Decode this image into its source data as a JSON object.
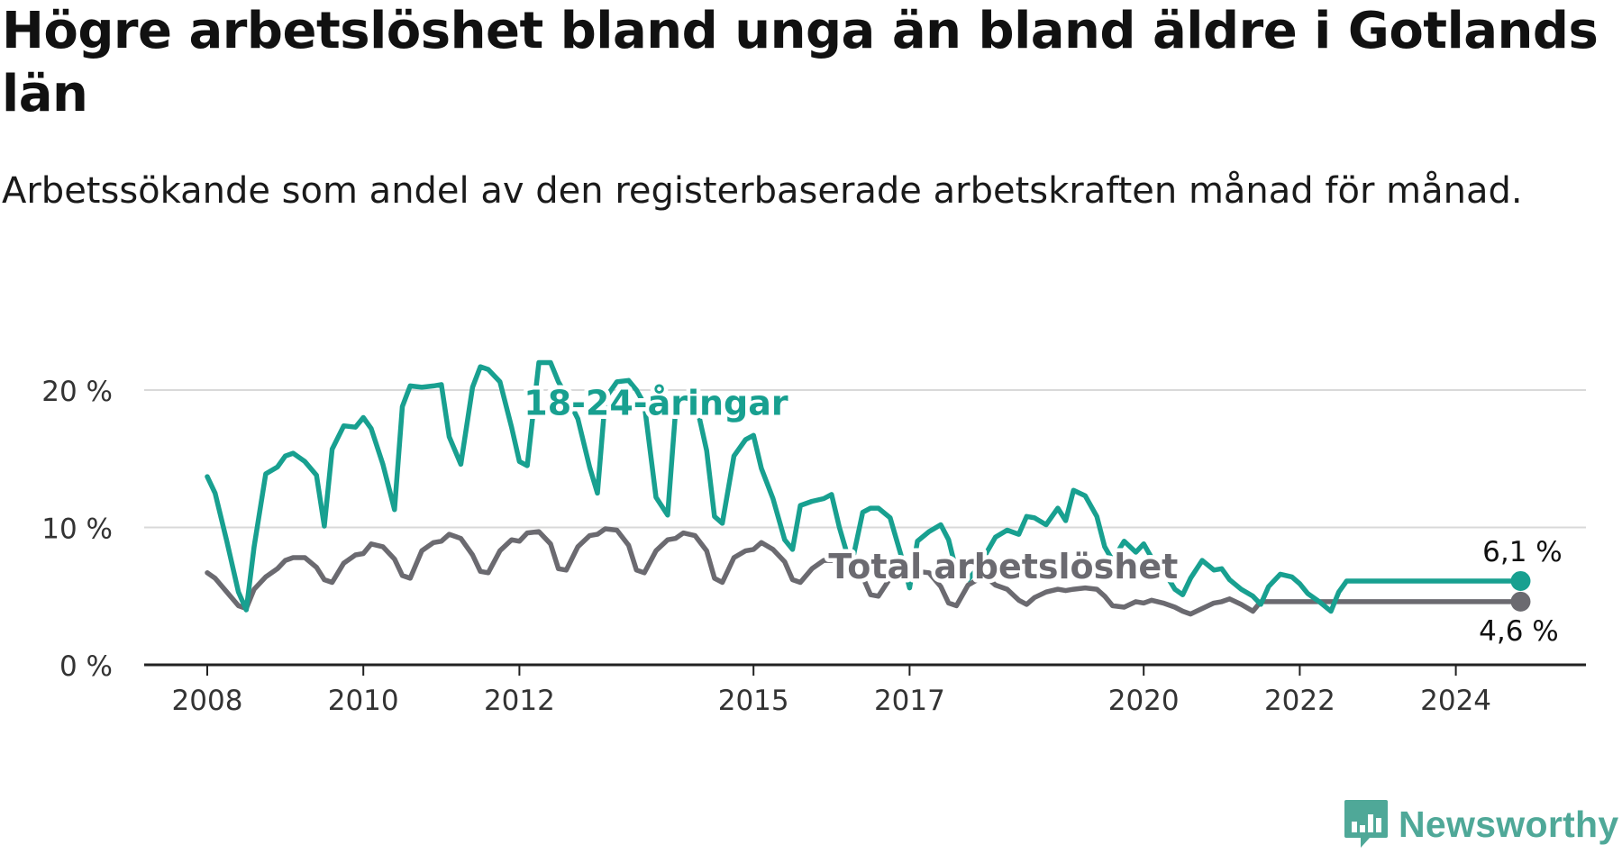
{
  "title": "Högre arbetslöshet bland unga än bland äldre i Gotlands län",
  "subtitle": "Arbetssökande som andel av den registerbaserade arbetskraften månad för månad.",
  "brand": {
    "name": "Newsworthy",
    "icon": "newsworthy-logo-icon",
    "color": "#4fa898"
  },
  "chart_data": {
    "type": "line",
    "title": "Högre arbetslöshet bland unga än bland äldre i Gotlands län",
    "subtitle": "Arbetssökande som andel av den registerbaserade arbetskraften månad för månad.",
    "xlabel": "",
    "ylabel": "",
    "ylim": [
      0,
      20
    ],
    "grid": true,
    "y_ticks": [
      0,
      10,
      20
    ],
    "y_tick_labels": [
      "0 %",
      "10 %",
      "20 %"
    ],
    "x_ticks": [
      2008,
      2010,
      2012,
      2015,
      2017,
      2020,
      2022,
      2024
    ],
    "x_tick_labels": [
      "2008",
      "2010",
      "2012",
      "2015",
      "2017",
      "2020",
      "2022",
      "2024"
    ],
    "series": [
      {
        "name": "18-24-åringar",
        "color": "#18a090",
        "label_position": [
          2013.75,
          18.2
        ],
        "end_label": "6,1 %",
        "x": [
          2008.0,
          2008.1,
          2008.25,
          2008.4,
          2008.5,
          2008.6,
          2008.75,
          2008.9,
          2009.0,
          2009.1,
          2009.25,
          2009.4,
          2009.5,
          2009.6,
          2009.75,
          2009.9,
          2010.0,
          2010.1,
          2010.25,
          2010.4,
          2010.5,
          2010.6,
          2010.75,
          2010.9,
          2011.0,
          2011.1,
          2011.25,
          2011.4,
          2011.5,
          2011.6,
          2011.75,
          2011.9,
          2012.0,
          2012.1,
          2012.25,
          2012.4,
          2012.5,
          2012.6,
          2012.75,
          2012.9,
          2013.0,
          2013.1,
          2013.25,
          2013.4,
          2013.5,
          2013.6,
          2013.75,
          2013.9,
          2014.0,
          2014.1,
          2014.25,
          2014.4,
          2014.5,
          2014.6,
          2014.75,
          2014.9,
          2015.0,
          2015.1,
          2015.25,
          2015.4,
          2015.5,
          2015.6,
          2015.75,
          2015.9,
          2016.0,
          2016.1,
          2016.25,
          2016.4,
          2016.5,
          2016.6,
          2016.75,
          2016.9,
          2017.0,
          2017.1,
          2017.25,
          2017.4,
          2017.5,
          2017.6,
          2017.75,
          2017.9,
          2018.0,
          2018.1,
          2018.25,
          2018.4,
          2018.5,
          2018.6,
          2018.75,
          2018.9,
          2019.0,
          2019.1,
          2019.25,
          2019.4,
          2019.5,
          2019.6,
          2019.75,
          2019.9,
          2020.0,
          2020.1,
          2020.25,
          2020.4,
          2020.5,
          2020.6,
          2020.75,
          2020.9,
          2021.0,
          2021.1,
          2021.25,
          2021.4,
          2021.5,
          2021.6,
          2021.75,
          2021.9,
          2022.0,
          2022.1,
          2022.25,
          2022.4,
          2022.5,
          2022.6,
          2022.75,
          2022.9,
          2023.0,
          2023.1,
          2023.25,
          2023.4,
          2023.5,
          2023.6,
          2023.75,
          2023.9,
          2024.0,
          2024.1,
          2024.25,
          2024.4,
          2024.5,
          2024.6,
          2024.75,
          2024.83
        ],
        "values": [
          13.7,
          12.5,
          9.0,
          5.3,
          4.0,
          8.6,
          13.9,
          14.4,
          15.2,
          15.4,
          14.8,
          13.8,
          10.1,
          15.7,
          17.4,
          17.3,
          18.0,
          17.2,
          14.6,
          11.3,
          18.8,
          20.3,
          20.2,
          20.3,
          20.4,
          16.6,
          14.6,
          20.2,
          21.7,
          21.5,
          20.6,
          17.3,
          14.8,
          14.5,
          22.0,
          22.0,
          20.6,
          19.6,
          17.9,
          14.4,
          12.5,
          19.4,
          20.6,
          20.7,
          20.0,
          19.0,
          12.2,
          10.9,
          18.4,
          19.6,
          19.4,
          15.6,
          10.8,
          10.3,
          15.2,
          16.4,
          16.7,
          14.3,
          12.1,
          9.1,
          8.4,
          11.6,
          11.9,
          12.1,
          12.4,
          10.0,
          7.1,
          11.1,
          11.4,
          11.4,
          10.7,
          7.8,
          5.6,
          9.0,
          9.7,
          10.2,
          9.1,
          6.8,
          6.2,
          7.2,
          8.3,
          9.3,
          9.8,
          9.5,
          10.8,
          10.7,
          10.2,
          11.4,
          10.5,
          12.7,
          12.3,
          10.8,
          8.6,
          7.6,
          9.0,
          8.2,
          8.8,
          7.8,
          6.9,
          5.5,
          5.1,
          6.3,
          7.6,
          6.9,
          7.0,
          6.2,
          5.5,
          5.0,
          4.4,
          5.7,
          6.6,
          6.4,
          5.9,
          5.2,
          4.6,
          3.9,
          5.3,
          6.1,
          6.1,
          6.1,
          6.1,
          6.1,
          6.1,
          6.1,
          6.1,
          6.1,
          6.1,
          6.1,
          6.1,
          6.1,
          6.1,
          6.1,
          6.1,
          6.1,
          6.1,
          6.1
        ]
      },
      {
        "name": "Total arbetslöshet",
        "color": "#6b6a70",
        "label_position": [
          2018.2,
          6.3
        ],
        "end_label": "4,6 %",
        "x": [
          2008.0,
          2008.1,
          2008.25,
          2008.4,
          2008.5,
          2008.6,
          2008.75,
          2008.9,
          2009.0,
          2009.1,
          2009.25,
          2009.4,
          2009.5,
          2009.6,
          2009.75,
          2009.9,
          2010.0,
          2010.1,
          2010.25,
          2010.4,
          2010.5,
          2010.6,
          2010.75,
          2010.9,
          2011.0,
          2011.1,
          2011.25,
          2011.4,
          2011.5,
          2011.6,
          2011.75,
          2011.9,
          2012.0,
          2012.1,
          2012.25,
          2012.4,
          2012.5,
          2012.6,
          2012.75,
          2012.9,
          2013.0,
          2013.1,
          2013.25,
          2013.4,
          2013.5,
          2013.6,
          2013.75,
          2013.9,
          2014.0,
          2014.1,
          2014.25,
          2014.4,
          2014.5,
          2014.6,
          2014.75,
          2014.9,
          2015.0,
          2015.1,
          2015.25,
          2015.4,
          2015.5,
          2015.6,
          2015.75,
          2015.9,
          2016.0,
          2016.1,
          2016.25,
          2016.4,
          2016.5,
          2016.6,
          2016.75,
          2016.9,
          2017.0,
          2017.1,
          2017.25,
          2017.4,
          2017.5,
          2017.6,
          2017.75,
          2017.9,
          2018.0,
          2018.1,
          2018.25,
          2018.4,
          2018.5,
          2018.6,
          2018.75,
          2018.9,
          2019.0,
          2019.1,
          2019.25,
          2019.4,
          2019.5,
          2019.6,
          2019.75,
          2019.9,
          2020.0,
          2020.1,
          2020.25,
          2020.4,
          2020.5,
          2020.6,
          2020.75,
          2020.9,
          2021.0,
          2021.1,
          2021.25,
          2021.4,
          2021.5,
          2021.6,
          2021.75,
          2021.9,
          2022.0,
          2022.1,
          2022.25,
          2022.4,
          2022.5,
          2022.6,
          2022.75,
          2022.9,
          2023.0,
          2023.1,
          2023.25,
          2023.4,
          2023.5,
          2023.6,
          2023.75,
          2023.9,
          2024.0,
          2024.1,
          2024.25,
          2024.4,
          2024.5,
          2024.6,
          2024.75,
          2024.83
        ],
        "values": [
          6.7,
          6.3,
          5.3,
          4.3,
          4.1,
          5.5,
          6.4,
          7.0,
          7.6,
          7.8,
          7.8,
          7.1,
          6.2,
          6.0,
          7.4,
          8.0,
          8.1,
          8.8,
          8.6,
          7.7,
          6.5,
          6.3,
          8.3,
          8.9,
          9.0,
          9.5,
          9.2,
          8.0,
          6.8,
          6.7,
          8.3,
          9.1,
          9.0,
          9.6,
          9.7,
          8.8,
          7.0,
          6.9,
          8.6,
          9.4,
          9.5,
          9.9,
          9.8,
          8.7,
          6.9,
          6.7,
          8.3,
          9.1,
          9.2,
          9.6,
          9.4,
          8.3,
          6.3,
          6.0,
          7.8,
          8.3,
          8.4,
          8.9,
          8.4,
          7.5,
          6.2,
          6.0,
          7.0,
          7.6,
          7.6,
          7.8,
          7.6,
          6.4,
          5.1,
          5.0,
          6.3,
          6.6,
          6.6,
          6.8,
          6.7,
          5.7,
          4.5,
          4.3,
          5.8,
          6.3,
          6.3,
          5.8,
          5.5,
          4.7,
          4.4,
          4.9,
          5.3,
          5.5,
          5.4,
          5.5,
          5.6,
          5.5,
          5.0,
          4.3,
          4.2,
          4.6,
          4.5,
          4.7,
          4.5,
          4.2,
          3.9,
          3.7,
          4.1,
          4.5,
          4.6,
          4.8,
          4.4,
          3.9,
          4.6,
          4.6,
          4.6,
          4.6,
          4.6,
          4.6,
          4.6,
          4.6,
          4.6,
          4.6,
          4.6,
          4.6,
          4.6,
          4.6,
          4.6,
          4.6,
          4.6,
          4.6,
          4.6,
          4.6,
          4.6,
          4.6,
          4.6,
          4.6,
          4.6,
          4.6,
          4.6,
          4.6
        ]
      }
    ]
  }
}
